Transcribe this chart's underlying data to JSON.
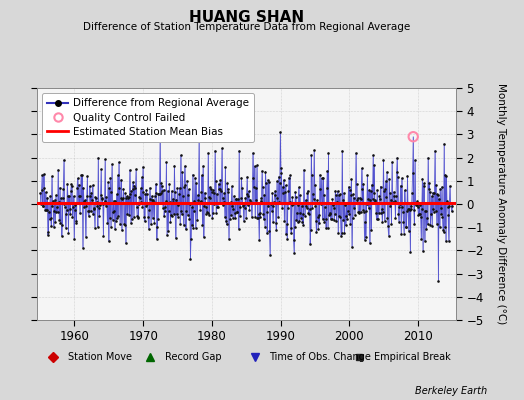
{
  "title": "HUANG SHAN",
  "subtitle": "Difference of Station Temperature Data from Regional Average",
  "ylabel": "Monthly Temperature Anomaly Difference (°C)",
  "xlabel_years": [
    1960,
    1970,
    1980,
    1990,
    2000,
    2010
  ],
  "ylim": [
    -5,
    5
  ],
  "xlim": [
    1954.5,
    2015.5
  ],
  "bias_value": 0.05,
  "background_color": "#d8d8d8",
  "plot_background": "#f5f5f5",
  "line_color": "#4444cc",
  "dot_color": "#111111",
  "bias_color": "#ff0000",
  "qc_color": "#ff88aa",
  "watermark": "Berkeley Earth",
  "seed": 42,
  "legend_line_color": "#3333bb",
  "legend_qc_color": "#ff88aa",
  "bottom_marker_colors": [
    "#cc0000",
    "#006600",
    "#2222bb",
    "#222222"
  ]
}
